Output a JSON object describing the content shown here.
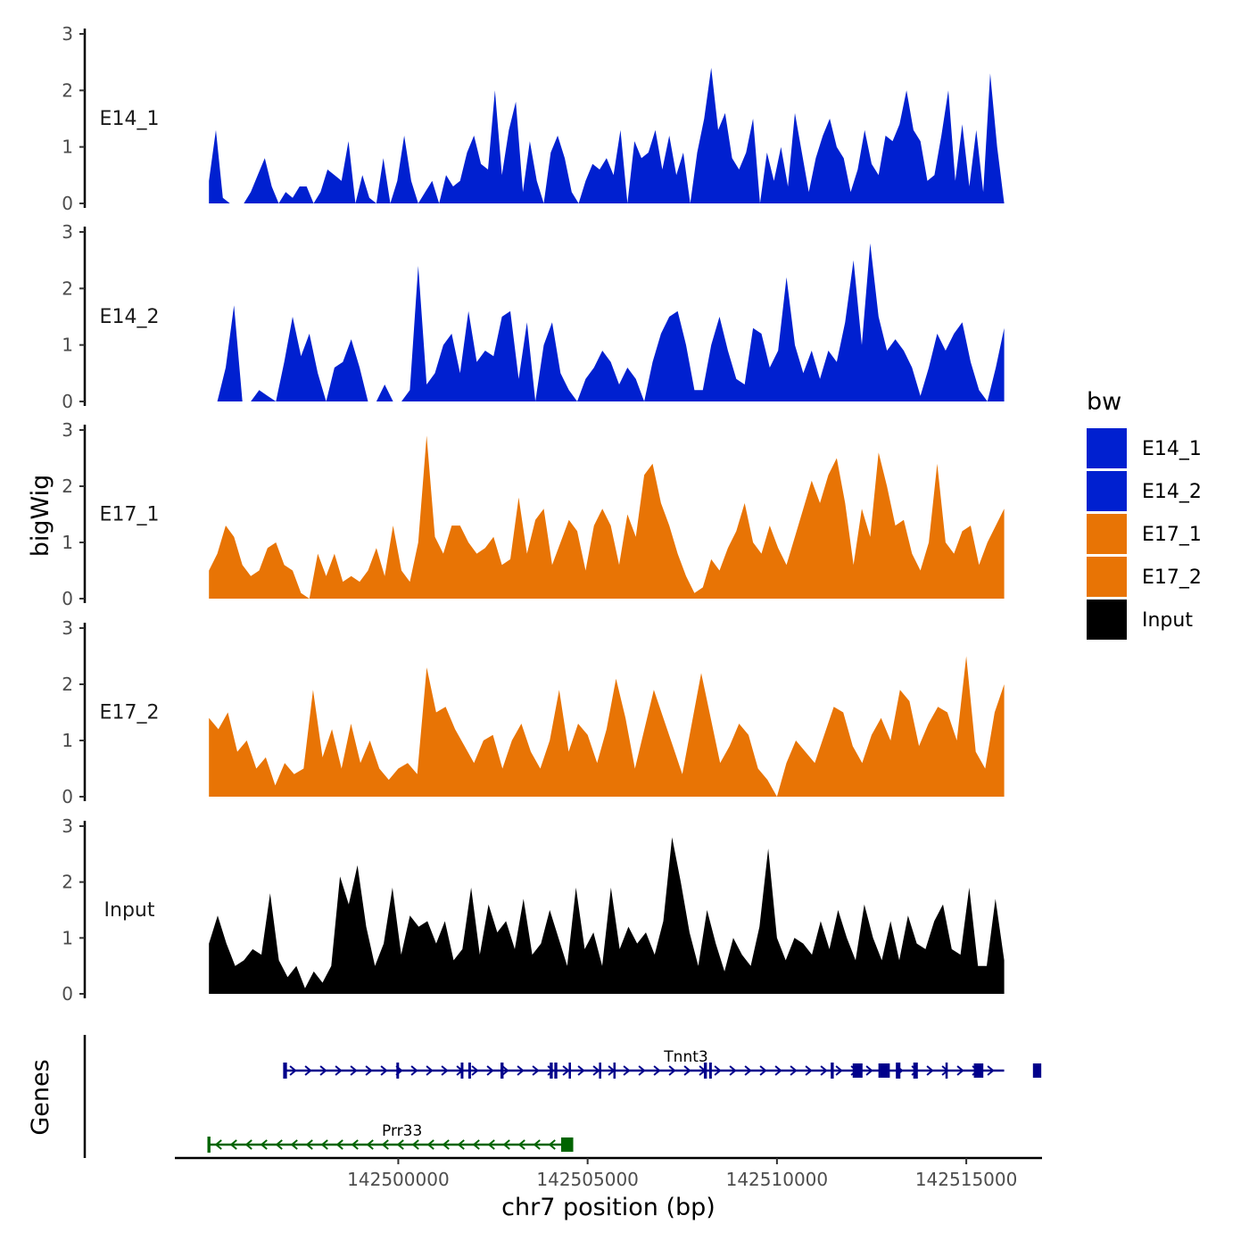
{
  "chart_data": {
    "type": "area",
    "title": "",
    "ylabel": "bigWig",
    "xlabel": "chr7 position (bp)",
    "genes_label": "Genes",
    "xlim": [
      142494100,
      142517000
    ],
    "ylim": [
      0,
      3
    ],
    "y_ticks": [
      "0",
      "1",
      "2",
      "3"
    ],
    "x_ticks": [
      {
        "value": 142500000,
        "label": "142500000"
      },
      {
        "value": 142505000,
        "label": "142505000"
      },
      {
        "value": 142510000,
        "label": "142510000"
      },
      {
        "value": 142515000,
        "label": "142515000"
      }
    ],
    "x_start": 142495000,
    "x_end": 142516000,
    "legend": {
      "title": "bw",
      "entries": [
        {
          "label": "E14_1",
          "color": "#0020d0"
        },
        {
          "label": "E14_2",
          "color": "#0020d0"
        },
        {
          "label": "E17_1",
          "color": "#e87405"
        },
        {
          "label": "E17_2",
          "color": "#e87405"
        },
        {
          "label": "Input",
          "color": "#000000"
        }
      ]
    },
    "series": [
      {
        "name": "E14_1",
        "color": "#0020d0",
        "values": [
          0.4,
          1.3,
          0.1,
          0,
          0,
          0,
          0.2,
          0.5,
          0.8,
          0.3,
          0,
          0.2,
          0.1,
          0.3,
          0.3,
          0,
          0.2,
          0.6,
          0.5,
          0.4,
          1.1,
          0,
          0.5,
          0.1,
          0,
          0.8,
          0,
          0.4,
          1.2,
          0.4,
          0,
          0.2,
          0.4,
          0,
          0.5,
          0.3,
          0.4,
          0.9,
          1.2,
          0.7,
          0.6,
          2.0,
          0.5,
          1.3,
          1.8,
          0.2,
          1.1,
          0.4,
          0,
          0.9,
          1.2,
          0.8,
          0.2,
          0,
          0.4,
          0.7,
          0.6,
          0.8,
          0.5,
          1.3,
          0,
          1.1,
          0.8,
          0.9,
          1.3,
          0.6,
          1.2,
          0.5,
          0.9,
          0,
          0.9,
          1.5,
          2.4,
          1.3,
          1.6,
          0.8,
          0.6,
          0.9,
          1.5,
          0,
          0.9,
          0.4,
          1.0,
          0.3,
          1.6,
          0.9,
          0.2,
          0.8,
          1.2,
          1.5,
          1.0,
          0.8,
          0.2,
          0.6,
          1.3,
          0.7,
          0.5,
          1.2,
          1.1,
          1.4,
          2.0,
          1.3,
          1.1,
          0.4,
          0.5,
          1.2,
          2.0,
          0.4,
          1.4,
          0.3,
          1.3,
          0.2,
          2.3,
          1.0,
          0
        ]
      },
      {
        "name": "E14_2",
        "color": "#0020d0",
        "values": [
          0,
          0,
          0.6,
          1.7,
          0,
          0,
          0.2,
          0.1,
          0,
          0.7,
          1.5,
          0.8,
          1.2,
          0.5,
          0,
          0.6,
          0.7,
          1.1,
          0.6,
          0,
          0,
          0.3,
          0,
          0,
          0.2,
          2.4,
          0.3,
          0.5,
          1.0,
          1.2,
          0.5,
          1.6,
          0.7,
          0.9,
          0.8,
          1.5,
          1.6,
          0.4,
          1.4,
          0,
          1.0,
          1.4,
          0.5,
          0.2,
          0,
          0.4,
          0.6,
          0.9,
          0.7,
          0.3,
          0.6,
          0.4,
          0,
          0.7,
          1.2,
          1.5,
          1.6,
          1.0,
          0.2,
          0.2,
          1.0,
          1.5,
          0.9,
          0.4,
          0.3,
          1.3,
          1.2,
          0.6,
          0.9,
          2.2,
          1.0,
          0.5,
          0.9,
          0.4,
          0.9,
          0.7,
          1.4,
          2.5,
          1.0,
          2.8,
          1.5,
          0.9,
          1.1,
          0.9,
          0.6,
          0.1,
          0.6,
          1.2,
          0.9,
          1.2,
          1.4,
          0.7,
          0.2,
          0,
          0.6,
          1.3
        ]
      },
      {
        "name": "E17_1",
        "color": "#e87405",
        "values": [
          0.5,
          0.8,
          1.3,
          1.1,
          0.6,
          0.4,
          0.5,
          0.9,
          1.0,
          0.6,
          0.5,
          0.1,
          0,
          0.8,
          0.4,
          0.8,
          0.3,
          0.4,
          0.3,
          0.5,
          0.9,
          0.4,
          1.3,
          0.5,
          0.3,
          1.0,
          2.9,
          1.1,
          0.8,
          1.3,
          1.3,
          1.0,
          0.8,
          0.9,
          1.1,
          0.6,
          0.7,
          1.8,
          0.8,
          1.4,
          1.6,
          0.6,
          1.0,
          1.4,
          1.2,
          0.5,
          1.3,
          1.6,
          1.3,
          0.6,
          1.5,
          1.1,
          2.2,
          2.4,
          1.7,
          1.3,
          0.8,
          0.4,
          0.1,
          0.2,
          0.7,
          0.5,
          0.9,
          1.2,
          1.7,
          1.0,
          0.8,
          1.3,
          0.9,
          0.6,
          1.1,
          1.6,
          2.1,
          1.7,
          2.2,
          2.5,
          1.7,
          0.6,
          1.6,
          1.1,
          2.6,
          2.0,
          1.3,
          1.4,
          0.8,
          0.5,
          1.0,
          2.4,
          1.0,
          0.8,
          1.2,
          1.3,
          0.6,
          1.0,
          1.3,
          1.6
        ]
      },
      {
        "name": "E17_2",
        "color": "#e87405",
        "values": [
          1.4,
          1.2,
          1.5,
          0.8,
          1.0,
          0.5,
          0.7,
          0.2,
          0.6,
          0.4,
          0.5,
          1.9,
          0.7,
          1.2,
          0.5,
          1.3,
          0.6,
          1.0,
          0.5,
          0.3,
          0.5,
          0.6,
          0.4,
          2.3,
          1.5,
          1.6,
          1.2,
          0.9,
          0.6,
          1.0,
          1.1,
          0.5,
          1.0,
          1.3,
          0.8,
          0.5,
          1.0,
          1.9,
          0.8,
          1.3,
          1.1,
          0.6,
          1.2,
          2.1,
          1.4,
          0.5,
          1.2,
          1.9,
          1.4,
          0.9,
          0.4,
          1.3,
          2.2,
          1.4,
          0.6,
          0.9,
          1.3,
          1.1,
          0.5,
          0.3,
          0,
          0.6,
          1.0,
          0.8,
          0.6,
          1.1,
          1.6,
          1.5,
          0.9,
          0.6,
          1.1,
          1.4,
          1.0,
          1.9,
          1.7,
          0.9,
          1.3,
          1.6,
          1.5,
          1.0,
          2.5,
          0.8,
          0.5,
          1.5,
          2.0
        ]
      },
      {
        "name": "Input",
        "color": "#000000",
        "values": [
          0.9,
          1.4,
          0.9,
          0.5,
          0.6,
          0.8,
          0.7,
          1.8,
          0.6,
          0.3,
          0.5,
          0.1,
          0.4,
          0.2,
          0.5,
          2.1,
          1.6,
          2.3,
          1.2,
          0.5,
          0.9,
          1.9,
          0.7,
          1.4,
          1.2,
          1.3,
          0.9,
          1.3,
          0.6,
          0.8,
          1.9,
          0.7,
          1.6,
          1.1,
          1.3,
          0.8,
          1.7,
          0.7,
          0.9,
          1.5,
          1.0,
          0.5,
          1.9,
          0.8,
          1.1,
          0.5,
          1.9,
          0.8,
          1.2,
          0.9,
          1.1,
          0.7,
          1.3,
          2.8,
          2.0,
          1.1,
          0.5,
          1.5,
          0.9,
          0.4,
          1.0,
          0.7,
          0.5,
          1.2,
          2.6,
          1.0,
          0.6,
          1.0,
          0.9,
          0.7,
          1.3,
          0.8,
          1.5,
          1.0,
          0.6,
          1.6,
          1.0,
          0.6,
          1.3,
          0.6,
          1.4,
          0.9,
          0.8,
          1.3,
          1.6,
          0.8,
          0.7,
          1.9,
          0.5,
          0.5,
          1.7,
          0.6
        ]
      }
    ],
    "genes": [
      {
        "name": "Tnnt3",
        "strand": "+",
        "color": "#00008b",
        "row": 0,
        "start": 142497000,
        "end": 142516000,
        "label_pos": 142507600,
        "exons": [
          [
            142496960,
            142497060
          ],
          [
            142499950,
            142500020
          ],
          [
            142501650,
            142501720
          ],
          [
            142501850,
            142501920
          ],
          [
            142502700,
            142502780
          ],
          [
            142504000,
            142504080
          ],
          [
            142504120,
            142504200
          ],
          [
            142504500,
            142504560
          ],
          [
            142505300,
            142505360
          ],
          [
            142505680,
            142505740
          ],
          [
            142508070,
            142508150
          ],
          [
            142508210,
            142508280
          ],
          [
            142511420,
            142511500
          ],
          [
            142512000,
            142512260
          ],
          [
            142512680,
            142512980
          ],
          [
            142513140,
            142513260
          ],
          [
            142513600,
            142513720
          ],
          [
            142514450,
            142514510
          ],
          [
            142515200,
            142515450
          ],
          [
            142516760,
            142516980
          ]
        ]
      },
      {
        "name": "Prr33",
        "strand": "-",
        "color": "#006400",
        "row": 1,
        "start": 142495000,
        "end": 142504600,
        "label_pos": 142500100,
        "exons": [
          [
            142494960,
            142495040
          ],
          [
            142504300,
            142504620
          ]
        ]
      }
    ]
  }
}
